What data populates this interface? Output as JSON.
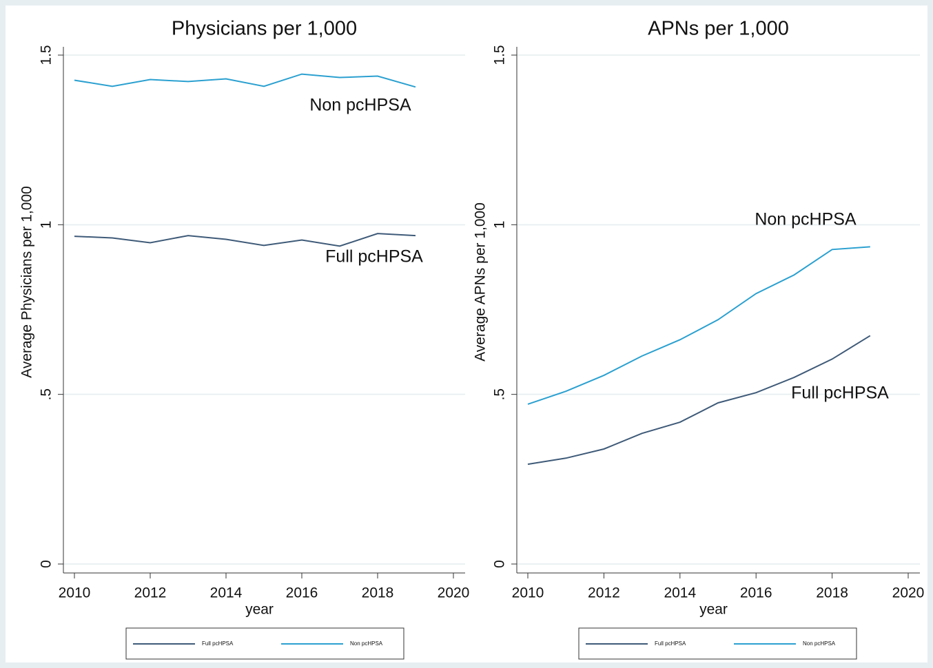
{
  "chart_data": [
    {
      "type": "line",
      "title": "Physicians per 1,000",
      "x_label": "year",
      "y_label": "Average Physicians per 1,000",
      "x": [
        2010,
        2011,
        2012,
        2013,
        2014,
        2015,
        2016,
        2017,
        2018,
        2019
      ],
      "series": [
        {
          "name": "Full pcHPSA",
          "color": "#3e5a78",
          "values": [
            0.966,
            0.961,
            0.947,
            0.968,
            0.957,
            0.939,
            0.955,
            0.937,
            0.974,
            0.968
          ]
        },
        {
          "name": "Non pcHPSA",
          "color": "#2aa0d0",
          "values": [
            1.426,
            1.408,
            1.428,
            1.422,
            1.43,
            1.408,
            1.444,
            1.434,
            1.438,
            1.406
          ]
        }
      ],
      "annotations": [
        "Non pcHPSA",
        "Full pcHPSA"
      ],
      "xlim": [
        2010,
        2020
      ],
      "xticks": [
        2010,
        2012,
        2014,
        2016,
        2018,
        2020
      ],
      "ylim": [
        0,
        1.5
      ],
      "yticks": [
        0,
        {
          "value": 0.5,
          "label": ".5"
        },
        1,
        1.5
      ],
      "grid": true,
      "legend": "bottom"
    },
    {
      "type": "line",
      "title": "APNs per 1,000",
      "x_label": "year",
      "y_label": "Average APNs per 1,000",
      "x": [
        2010,
        2011,
        2012,
        2013,
        2014,
        2015,
        2016,
        2017,
        2018,
        2019
      ],
      "series": [
        {
          "name": "Full pcHPSA",
          "color": "#3e5a78",
          "values": [
            0.294,
            0.312,
            0.339,
            0.385,
            0.418,
            0.475,
            0.505,
            0.55,
            0.604,
            0.673
          ]
        },
        {
          "name": "Non pcHPSA",
          "color": "#2aa0d0",
          "values": [
            0.471,
            0.509,
            0.556,
            0.613,
            0.661,
            0.72,
            0.797,
            0.852,
            0.927,
            0.935
          ]
        }
      ],
      "annotations": [
        "Non pcHPSA",
        "Full pcHPSA"
      ],
      "xlim": [
        2010,
        2020
      ],
      "xticks": [
        2010,
        2012,
        2014,
        2016,
        2018,
        2020
      ],
      "ylim": [
        0,
        1.5
      ],
      "yticks": [
        0,
        {
          "value": 0.5,
          "label": ".5"
        },
        1,
        1.5
      ],
      "grid": true,
      "legend": "bottom"
    }
  ]
}
